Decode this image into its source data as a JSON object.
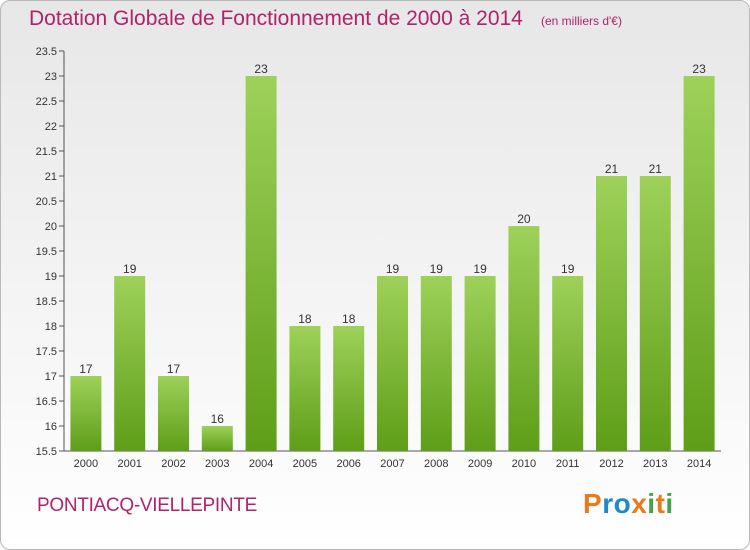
{
  "header": {
    "title": "Dotation Globale de Fonctionnement de 2000 à 2014",
    "unit": "(en milliers d'€)"
  },
  "footer": {
    "commune": "PONTIACQ-VIELLEPINTE",
    "brand": "Proxiti",
    "brand_colors": [
      "#e97b1a",
      "#1e88c9",
      "#1e88c9",
      "#e97b1a",
      "#4aa04a",
      "#e97b1a",
      "#4aa04a"
    ]
  },
  "colors": {
    "title": "#b0236a",
    "bar_light": "#9ed15a",
    "bar_dark": "#5e9e18",
    "axis_text": "#333333"
  },
  "chart_data": {
    "type": "bar",
    "categories": [
      "2000",
      "2001",
      "2002",
      "2003",
      "2004",
      "2005",
      "2006",
      "2007",
      "2008",
      "2009",
      "2010",
      "2011",
      "2012",
      "2013",
      "2014"
    ],
    "values": [
      17,
      19,
      17,
      16,
      23,
      18,
      18,
      19,
      19,
      19,
      20,
      19,
      21,
      21,
      23
    ],
    "data_labels": [
      "17",
      "19",
      "17",
      "16",
      "23",
      "18",
      "18",
      "19",
      "19",
      "19",
      "20",
      "19",
      "21",
      "21",
      "23"
    ],
    "title": "Dotation Globale de Fonctionnement de 2000 à 2014",
    "ylim": [
      15.5,
      23.5
    ],
    "yticks": [
      15.5,
      16,
      16.5,
      17,
      17.5,
      18,
      18.5,
      19,
      19.5,
      20,
      20.5,
      21,
      21.5,
      22,
      22.5,
      23,
      23.5
    ],
    "ytick_labels": [
      "15.5",
      "16",
      "16.5",
      "17",
      "17.5",
      "18",
      "18.5",
      "19",
      "19.5",
      "20",
      "20.5",
      "21",
      "21.5",
      "22",
      "22.5",
      "23",
      "23.5"
    ],
    "grid": false,
    "legend": "none"
  }
}
